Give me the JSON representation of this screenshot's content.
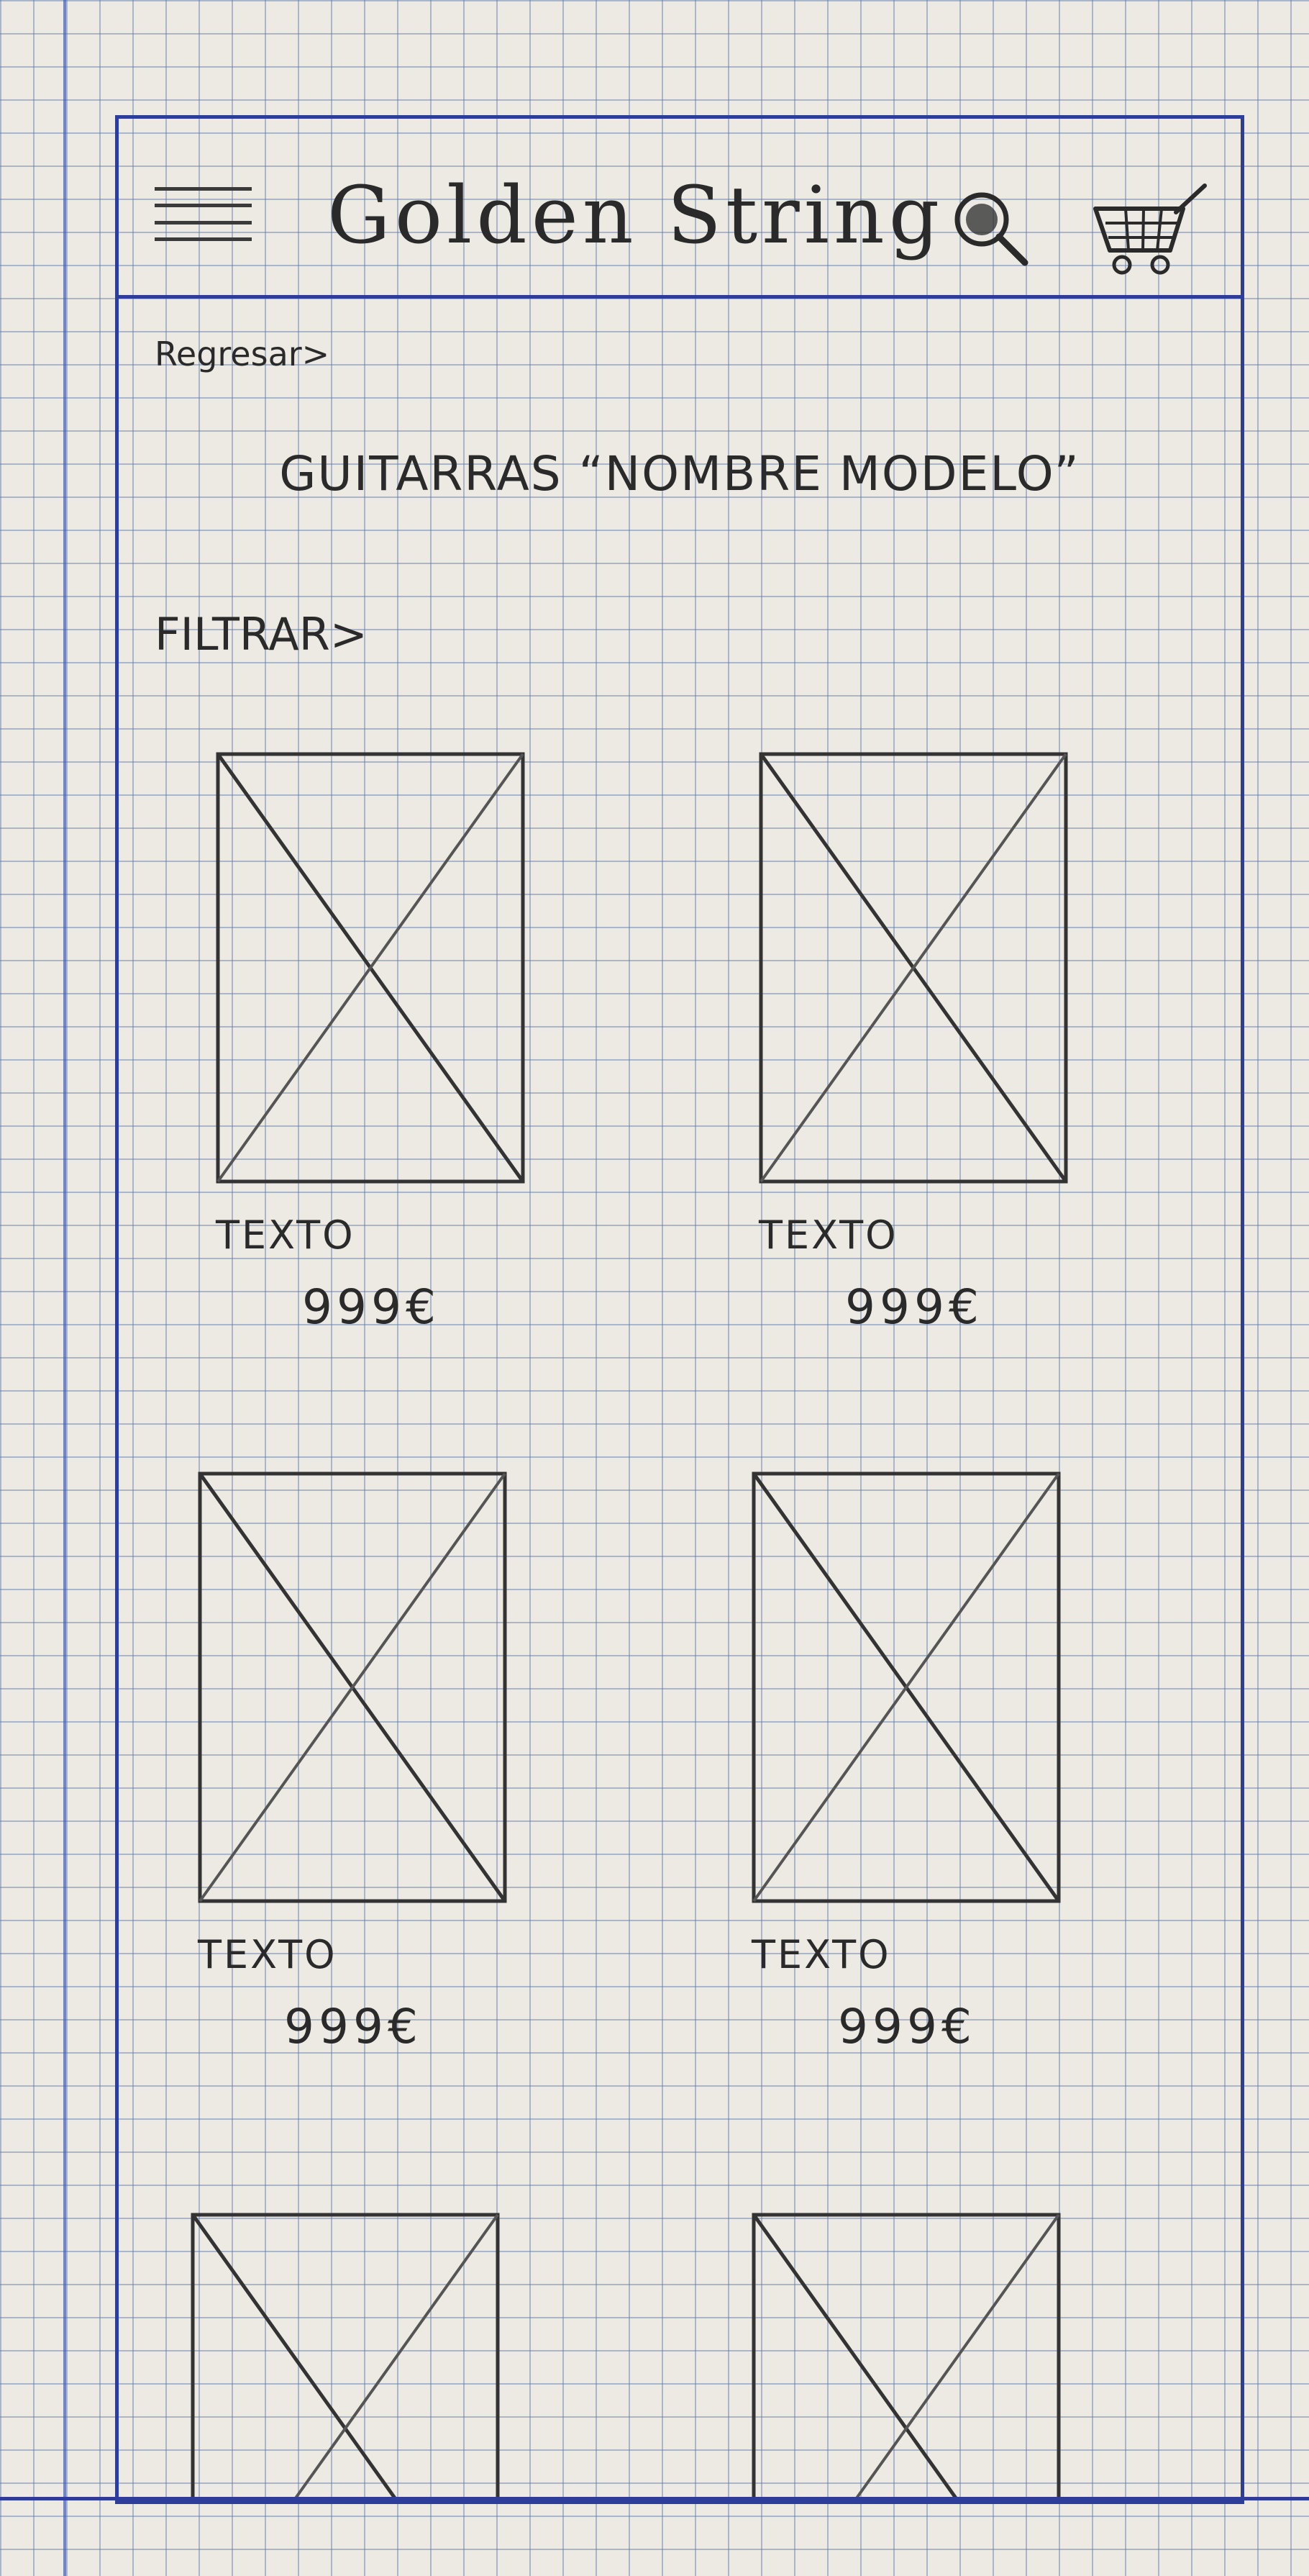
{
  "header": {
    "logo_text": "Golden String",
    "menu_icon": "menu-icon",
    "search_icon": "search-icon",
    "cart_icon": "cart-icon"
  },
  "nav": {
    "back_label": "Regresar>"
  },
  "page": {
    "title": "GUITARRAS “NOMBRE MODELO”",
    "filter_label": "FILTRAR>"
  },
  "products": [
    {
      "name": "TEXTO",
      "price": "999€"
    },
    {
      "name": "TEXTO",
      "price": "999€"
    },
    {
      "name": "TEXTO",
      "price": "999€"
    },
    {
      "name": "TEXTO",
      "price": "999€"
    },
    {
      "name": "",
      "price": ""
    },
    {
      "name": "",
      "price": ""
    }
  ],
  "colors": {
    "ink": "#2a2a2a",
    "frame": "#2c3e9a",
    "grid": "#5a78aa",
    "paper": "#eceae2"
  }
}
